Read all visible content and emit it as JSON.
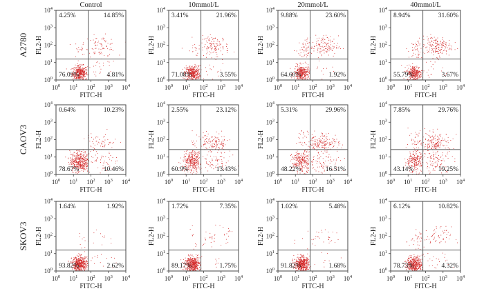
{
  "figure": {
    "columns": [
      "Control",
      "10mmol/L",
      "20mmol/L",
      "40mmol/L"
    ],
    "rows": [
      "A2780",
      "CAOV3",
      "SKOV3"
    ],
    "point_color": "#d42a2a",
    "frame_color": "#444444"
  },
  "axes": {
    "xlabel": "FITC-H",
    "ylabel": "FL2-H",
    "scale": "log",
    "lim": [
      1,
      10000
    ],
    "tick_base": "10",
    "tick_exponents": [
      "0",
      "1",
      "2",
      "3",
      "4"
    ]
  },
  "chart_data": [
    {
      "type": "scatter",
      "cell_line": "A2780",
      "treatment": "Control",
      "gate": {
        "x": 70,
        "y": 16
      },
      "quadrants": {
        "UL": "4.25%",
        "UR": "14.85%",
        "LL": "76.09%",
        "LR": "4.81%"
      }
    },
    {
      "type": "scatter",
      "cell_line": "A2780",
      "treatment": "10mmol/L",
      "gate": {
        "x": 70,
        "y": 16
      },
      "quadrants": {
        "UL": "3.41%",
        "UR": "21.96%",
        "LL": "71.08%",
        "LR": "3.55%"
      }
    },
    {
      "type": "scatter",
      "cell_line": "A2780",
      "treatment": "20mmol/L",
      "gate": {
        "x": 70,
        "y": 16
      },
      "quadrants": {
        "UL": "9.88%",
        "UR": "23.60%",
        "LL": "64.60%",
        "LR": "1.92%"
      }
    },
    {
      "type": "scatter",
      "cell_line": "A2780",
      "treatment": "40mmol/L",
      "gate": {
        "x": 70,
        "y": 16
      },
      "quadrants": {
        "UL": "8.94%",
        "UR": "31.60%",
        "LL": "55.79%",
        "LR": "3.67%"
      }
    },
    {
      "type": "scatter",
      "cell_line": "CAOV3",
      "treatment": "Control",
      "gate": {
        "x": 70,
        "y": 27
      },
      "quadrants": {
        "UL": "0.64%",
        "UR": "10.23%",
        "LL": "78.67%",
        "LR": "10.46%"
      }
    },
    {
      "type": "scatter",
      "cell_line": "CAOV3",
      "treatment": "10mmol/L",
      "gate": {
        "x": 70,
        "y": 27
      },
      "quadrants": {
        "UL": "2.55%",
        "UR": "23.12%",
        "LL": "60.9%",
        "LR": "13.43%"
      }
    },
    {
      "type": "scatter",
      "cell_line": "CAOV3",
      "treatment": "20mmol/L",
      "gate": {
        "x": 70,
        "y": 27
      },
      "quadrants": {
        "UL": "5.31%",
        "UR": "29.96%",
        "LL": "48.22%",
        "LR": "16.51%"
      }
    },
    {
      "type": "scatter",
      "cell_line": "CAOV3",
      "treatment": "40mmol/L",
      "gate": {
        "x": 70,
        "y": 27
      },
      "quadrants": {
        "UL": "7.85%",
        "UR": "29.76%",
        "LL": "43.14%",
        "LR": "19.25%"
      }
    },
    {
      "type": "scatter",
      "cell_line": "SKOV3",
      "treatment": "Control",
      "gate": {
        "x": 70,
        "y": 16
      },
      "quadrants": {
        "UL": "1.64%",
        "UR": "1.92%",
        "LL": "93.82%",
        "LR": "2.62%"
      }
    },
    {
      "type": "scatter",
      "cell_line": "SKOV3",
      "treatment": "10mmol/L",
      "gate": {
        "x": 70,
        "y": 16
      },
      "quadrants": {
        "UL": "1.72%",
        "UR": "7.35%",
        "LL": "89.17%",
        "LR": "1.75%"
      }
    },
    {
      "type": "scatter",
      "cell_line": "SKOV3",
      "treatment": "20mmol/L",
      "gate": {
        "x": 70,
        "y": 16
      },
      "quadrants": {
        "UL": "1.02%",
        "UR": "5.48%",
        "LL": "91.82%",
        "LR": "1.68%"
      }
    },
    {
      "type": "scatter",
      "cell_line": "SKOV3",
      "treatment": "40mmol/L",
      "gate": {
        "x": 70,
        "y": 16
      },
      "quadrants": {
        "UL": "6.12%",
        "UR": "10.82%",
        "LL": "78.73%",
        "LR": "4.32%"
      }
    }
  ]
}
